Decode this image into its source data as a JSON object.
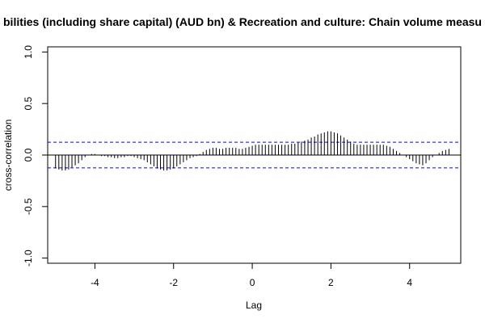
{
  "chart_data": {
    "type": "bar",
    "title": "bilities (including share capital) (AUD bn)  & Recreation and culture: Chain volume measu",
    "xlabel": "Lag",
    "ylabel": "cross-correlation",
    "xlim": [
      -5.2,
      5.3
    ],
    "ylim": [
      -1.05,
      1.05
    ],
    "x_ticks": [
      -4,
      -2,
      0,
      2,
      4
    ],
    "x_tick_labels": [
      "-4",
      "-2",
      "0",
      "2",
      "4"
    ],
    "y_ticks": [
      -1.0,
      -0.5,
      0.0,
      0.5,
      1.0
    ],
    "y_tick_labels": [
      "-1.0",
      "-0.5",
      "0.0",
      "0.5",
      "1.0"
    ],
    "confidence_bound": 0.124,
    "colors": {
      "bars": "#000000",
      "bounds": "#0000ff",
      "zero_line": "#000000"
    },
    "lags": [
      -5.0,
      -4.917,
      -4.833,
      -4.75,
      -4.667,
      -4.583,
      -4.5,
      -4.417,
      -4.333,
      -4.25,
      -4.167,
      -4.083,
      -4.0,
      -3.917,
      -3.833,
      -3.75,
      -3.667,
      -3.583,
      -3.5,
      -3.417,
      -3.333,
      -3.25,
      -3.167,
      -3.083,
      -3.0,
      -2.917,
      -2.833,
      -2.75,
      -2.667,
      -2.583,
      -2.5,
      -2.417,
      -2.333,
      -2.25,
      -2.167,
      -2.083,
      -2.0,
      -1.917,
      -1.833,
      -1.75,
      -1.667,
      -1.583,
      -1.5,
      -1.417,
      -1.333,
      -1.25,
      -1.167,
      -1.083,
      -1.0,
      -0.917,
      -0.833,
      -0.75,
      -0.667,
      -0.583,
      -0.5,
      -0.417,
      -0.333,
      -0.25,
      -0.167,
      -0.083,
      0.0,
      0.083,
      0.167,
      0.25,
      0.333,
      0.417,
      0.5,
      0.583,
      0.667,
      0.75,
      0.833,
      0.917,
      1.0,
      1.083,
      1.167,
      1.25,
      1.333,
      1.417,
      1.5,
      1.583,
      1.667,
      1.75,
      1.833,
      1.917,
      2.0,
      2.083,
      2.167,
      2.25,
      2.333,
      2.417,
      2.5,
      2.583,
      2.667,
      2.75,
      2.833,
      2.917,
      3.0,
      3.083,
      3.167,
      3.25,
      3.333,
      3.417,
      3.5,
      3.583,
      3.667,
      3.75,
      3.833,
      3.917,
      4.0,
      4.083,
      4.167,
      4.25,
      4.333,
      4.417,
      4.5,
      4.583,
      4.667,
      4.75,
      4.833,
      4.917,
      5.0
    ],
    "values": [
      -0.13,
      -0.14,
      -0.15,
      -0.15,
      -0.14,
      -0.12,
      -0.1,
      -0.08,
      -0.05,
      -0.02,
      0.0,
      0.01,
      0.01,
      0.0,
      -0.01,
      -0.01,
      -0.02,
      -0.02,
      -0.03,
      -0.03,
      -0.02,
      -0.02,
      -0.01,
      -0.01,
      -0.02,
      -0.03,
      -0.04,
      -0.05,
      -0.07,
      -0.09,
      -0.11,
      -0.13,
      -0.14,
      -0.15,
      -0.15,
      -0.14,
      -0.13,
      -0.11,
      -0.09,
      -0.07,
      -0.05,
      -0.03,
      -0.02,
      -0.01,
      0.01,
      0.03,
      0.05,
      0.06,
      0.07,
      0.07,
      0.06,
      0.06,
      0.07,
      0.07,
      0.07,
      0.07,
      0.06,
      0.06,
      0.07,
      0.08,
      0.09,
      0.1,
      0.1,
      0.1,
      0.1,
      0.1,
      0.1,
      0.1,
      0.1,
      0.1,
      0.1,
      0.1,
      0.11,
      0.11,
      0.12,
      0.13,
      0.14,
      0.15,
      0.17,
      0.18,
      0.2,
      0.21,
      0.22,
      0.23,
      0.23,
      0.22,
      0.21,
      0.19,
      0.17,
      0.15,
      0.13,
      0.11,
      0.1,
      0.1,
      0.1,
      0.1,
      0.1,
      0.1,
      0.1,
      0.1,
      0.1,
      0.09,
      0.08,
      0.06,
      0.04,
      0.02,
      0.0,
      -0.02,
      -0.04,
      -0.06,
      -0.08,
      -0.09,
      -0.1,
      -0.08,
      -0.05,
      -0.02,
      0.0,
      0.02,
      0.04,
      0.05,
      0.06
    ]
  }
}
